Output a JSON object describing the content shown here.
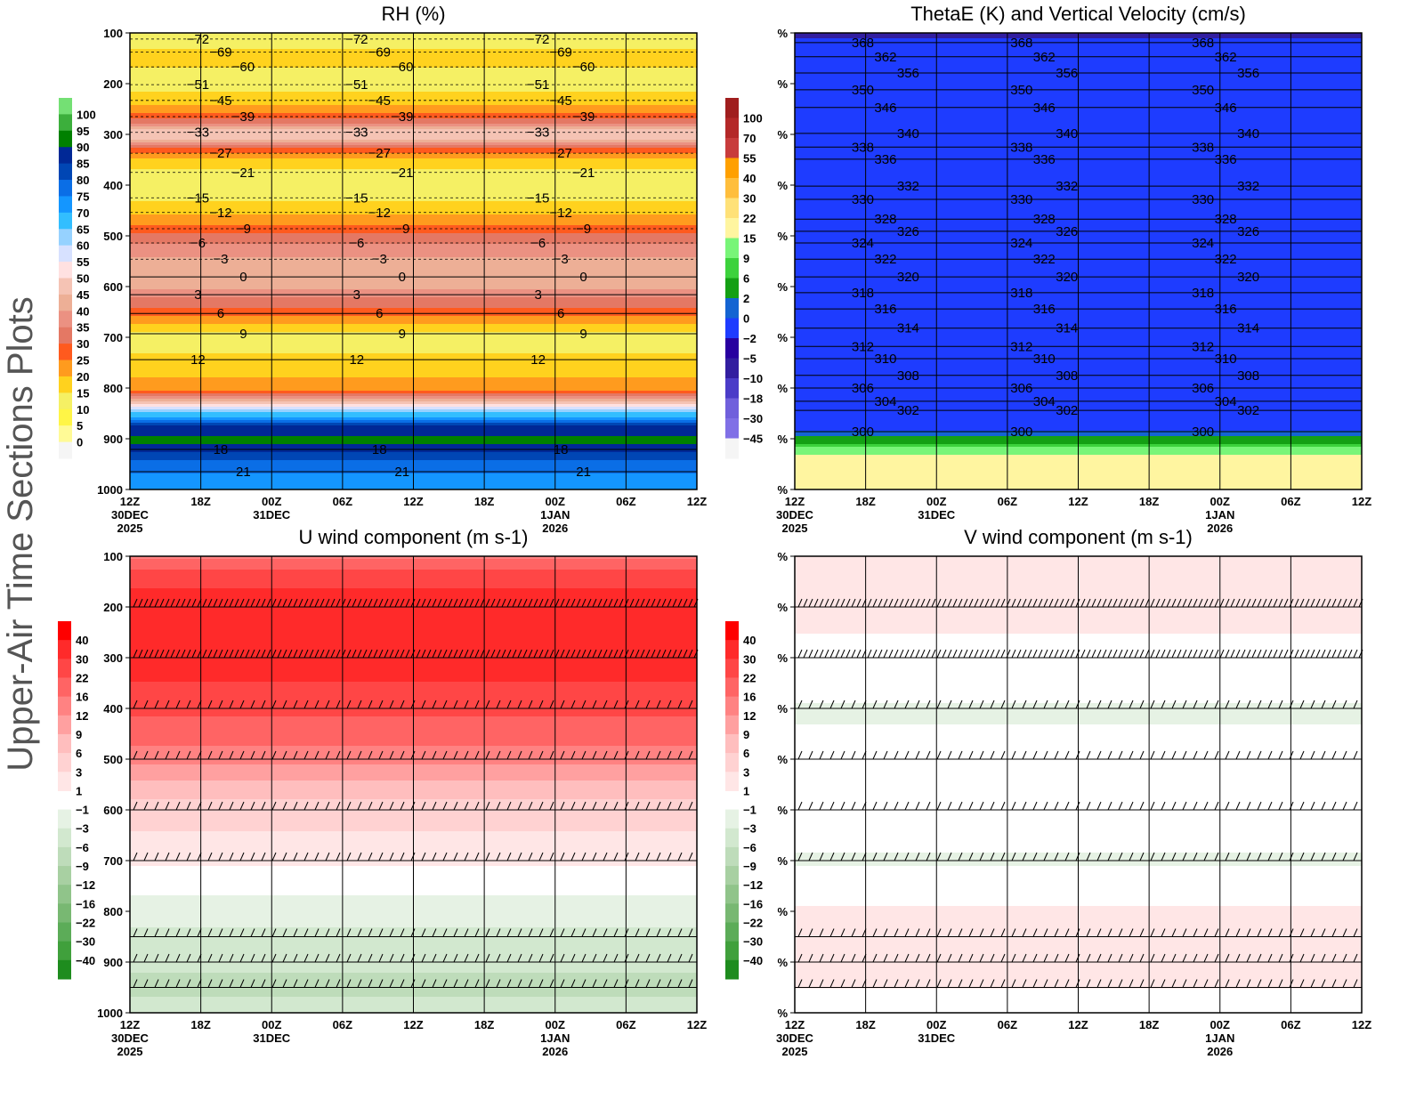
{
  "page": {
    "side_title": "Upper-Air Time Sections Plots"
  },
  "time_axis": {
    "ticks": [
      [
        "12Z",
        "30DEC",
        "2025"
      ],
      [
        "18Z"
      ],
      [
        "00Z",
        "31DEC"
      ],
      [
        "06Z"
      ],
      [
        "12Z"
      ],
      [
        "18Z"
      ],
      [
        "00Z",
        "1JAN",
        "2026"
      ],
      [
        "06Z"
      ],
      [
        "12Z"
      ]
    ],
    "range_hours": [
      0,
      48
    ]
  },
  "chart_data": [
    {
      "id": "rh",
      "type": "heatmap",
      "title": "RH (%)",
      "y_ticks": [
        "100",
        "200",
        "300",
        "400",
        "500",
        "600",
        "700",
        "800",
        "900",
        "1000"
      ],
      "ylim_hpa": [
        100,
        1000
      ],
      "colorbar": {
        "levels": [
          0,
          5,
          10,
          15,
          20,
          25,
          30,
          35,
          40,
          45,
          50,
          55,
          60,
          65,
          70,
          75,
          80,
          85,
          90,
          95,
          100
        ],
        "colors": [
          "#f5f5f5",
          "#fffa96",
          "#fff546",
          "#f5f064",
          "#ffd21e",
          "#ff9b1e",
          "#ff5a1e",
          "#e47864",
          "#eb9182",
          "#edaf96",
          "#f5c3b4",
          "#ffe1e1",
          "#d7e1ff",
          "#96d2ff",
          "#32beff",
          "#1496ff",
          "#0a6ee6",
          "#0046b4",
          "#002896",
          "#008000",
          "#3caf3c",
          "#74e074"
        ]
      },
      "profile": {
        "p": [
          100,
          150,
          200,
          250,
          275,
          300,
          325,
          350,
          400,
          450,
          500,
          550,
          600,
          650,
          700,
          750,
          800,
          825,
          850,
          875,
          900,
          925,
          950,
          1000
        ],
        "v": [
          12,
          17,
          12,
          22,
          32,
          52,
          32,
          17,
          12,
          17,
          32,
          42,
          42,
          27,
          12,
          17,
          22,
          42,
          65,
          85,
          92,
          86,
          77,
          72
        ]
      },
      "contours": {
        "style": "dashed-below-0",
        "levels": [
          {
            "v": "-72",
            "p": 112
          },
          {
            "v": "-69",
            "p": 138
          },
          {
            "v": "-60",
            "p": 167
          },
          {
            "v": "-51",
            "p": 202
          },
          {
            "v": "-45",
            "p": 233
          },
          {
            "v": "-39",
            "p": 265
          },
          {
            "v": "-33",
            "p": 296
          },
          {
            "v": "-27",
            "p": 337
          },
          {
            "v": "-21",
            "p": 375
          },
          {
            "v": "-15",
            "p": 425
          },
          {
            "v": "-12",
            "p": 454
          },
          {
            "v": "-9",
            "p": 486
          },
          {
            "v": "-6",
            "p": 514
          },
          {
            "v": "-3",
            "p": 546
          },
          {
            "v": "0",
            "p": 581
          },
          {
            "v": "3",
            "p": 616
          },
          {
            "v": "6",
            "p": 653
          },
          {
            "v": "9",
            "p": 693
          },
          {
            "v": "12",
            "p": 744
          },
          {
            "v": "18",
            "p": 921
          },
          {
            "v": "21",
            "p": 965
          }
        ]
      }
    },
    {
      "id": "thetae",
      "type": "heatmap",
      "title": "ThetaE (K) and Vertical Velocity (cm/s)",
      "y_ticks": [
        "%",
        "%",
        "%",
        "%",
        "%",
        "%",
        "%",
        "%",
        "%",
        "%"
      ],
      "ylim_hpa": [
        100,
        1000
      ],
      "colorbar": {
        "levels": [
          -45,
          -30,
          -18,
          -10,
          -5,
          -2,
          0,
          2,
          6,
          9,
          15,
          22,
          30,
          40,
          55,
          70,
          100
        ],
        "colors": [
          "#f5f5f5",
          "#8070e6",
          "#7060dc",
          "#4b3cc8",
          "#321ea0",
          "#2800a0",
          "#1e3cff",
          "#1464d2",
          "#14a014",
          "#3cd23c",
          "#78f578",
          "#fff5a0",
          "#ffe178",
          "#ffbe3c",
          "#ffa000",
          "#c83c3c",
          "#b42828",
          "#a01e1e"
        ]
      },
      "profile": {
        "p": [
          100,
          108,
          112,
          300,
          500,
          700,
          880,
          905,
          940,
          1000
        ],
        "v": [
          -6,
          -6,
          -1,
          -1,
          -1,
          -1,
          -1,
          4,
          18,
          18
        ]
      },
      "contours": {
        "style": "solid",
        "levels": [
          {
            "v": "368",
            "p": 119
          },
          {
            "v": "362",
            "p": 147
          },
          {
            "v": "356",
            "p": 179
          },
          {
            "v": "350",
            "p": 212
          },
          {
            "v": "346",
            "p": 247
          },
          {
            "v": "340",
            "p": 298
          },
          {
            "v": "338",
            "p": 325
          },
          {
            "v": "336",
            "p": 349
          },
          {
            "v": "332",
            "p": 402
          },
          {
            "v": "330",
            "p": 428
          },
          {
            "v": "328",
            "p": 467
          },
          {
            "v": "326",
            "p": 491
          },
          {
            "v": "324",
            "p": 514
          },
          {
            "v": "322",
            "p": 546
          },
          {
            "v": "320",
            "p": 581
          },
          {
            "v": "318",
            "p": 612
          },
          {
            "v": "316",
            "p": 644
          },
          {
            "v": "314",
            "p": 682
          },
          {
            "v": "312",
            "p": 718
          },
          {
            "v": "310",
            "p": 742
          },
          {
            "v": "308",
            "p": 775
          },
          {
            "v": "306",
            "p": 800
          },
          {
            "v": "304",
            "p": 826
          },
          {
            "v": "302",
            "p": 844
          },
          {
            "v": "300",
            "p": 886
          }
        ]
      }
    },
    {
      "id": "u",
      "type": "heatmap",
      "title": "U wind component (m s-1)",
      "y_ticks": [
        "100",
        "200",
        "300",
        "400",
        "500",
        "600",
        "700",
        "800",
        "900",
        "1000"
      ],
      "ylim_hpa": [
        100,
        1000
      ],
      "colorbar": {
        "levels": [
          -40,
          -30,
          -22,
          -16,
          -12,
          -9,
          -6,
          -3,
          -1,
          1,
          3,
          6,
          9,
          12,
          16,
          22,
          30,
          40
        ],
        "colors": [
          "#1e8c1e",
          "#40a03c",
          "#5cac58",
          "#78b872",
          "#90c48a",
          "#a8d0a2",
          "#bedcba",
          "#d2e8cf",
          "#e6f2e4",
          "#ffffff",
          "#ffe6e6",
          "#ffd2d2",
          "#ffbebe",
          "#ffa0a0",
          "#ff8282",
          "#ff6464",
          "#ff4646",
          "#ff2a2a",
          "#fe0000"
        ]
      },
      "profile": {
        "p": [
          100,
          150,
          200,
          300,
          400,
          500,
          600,
          700,
          750,
          850,
          950,
          1000
        ],
        "v": [
          14,
          28,
          35,
          35,
          24,
          13,
          4,
          1.5,
          -0.5,
          -3.5,
          -7,
          -4
        ]
      },
      "barb_levels_hpa": [
        200,
        300,
        400,
        500,
        600,
        700,
        850,
        900,
        950
      ]
    },
    {
      "id": "v",
      "type": "heatmap",
      "title": "V wind component (m s-1)",
      "y_ticks": [
        "%",
        "%",
        "%",
        "%",
        "%",
        "%",
        "%",
        "%",
        "%",
        "%"
      ],
      "ylim_hpa": [
        100,
        1000
      ],
      "colorbar": {
        "levels": [
          -40,
          -30,
          -22,
          -16,
          -12,
          -9,
          -6,
          -3,
          -1,
          1,
          3,
          6,
          9,
          12,
          16,
          22,
          30,
          40
        ],
        "colors": [
          "#1e8c1e",
          "#40a03c",
          "#5cac58",
          "#78b872",
          "#90c48a",
          "#a8d0a2",
          "#bedcba",
          "#d2e8cf",
          "#e6f2e4",
          "#ffffff",
          "#ffe6e6",
          "#ffd2d2",
          "#ffbebe",
          "#ffa0a0",
          "#ff8282",
          "#ff6464",
          "#ff4646",
          "#ff2a2a",
          "#fe0000"
        ]
      },
      "profile": {
        "p": [
          100,
          200,
          300,
          400,
          600,
          700,
          800,
          900,
          1000
        ],
        "v": [
          2,
          1.5,
          0.5,
          -1.2,
          0,
          -1.2,
          1.2,
          1.5,
          0.5
        ]
      },
      "barb_levels_hpa": [
        200,
        300,
        400,
        500,
        600,
        700,
        850,
        900,
        950
      ]
    }
  ]
}
